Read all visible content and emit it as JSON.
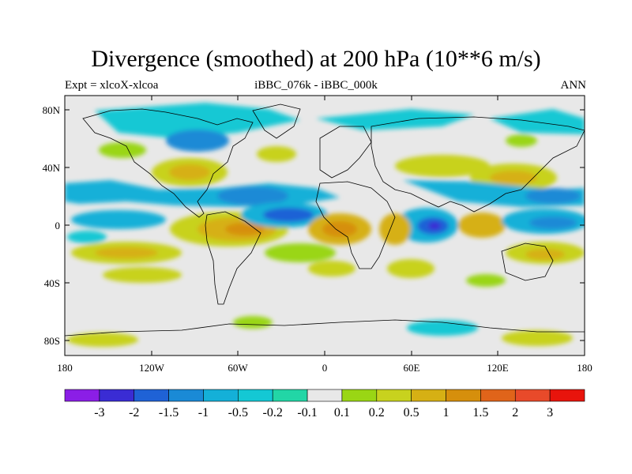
{
  "title": "Divergence (smoothed) at 200 hPa (10**6 m/s)",
  "subtitle_left": "Expt = xlcoX-xlcoa",
  "subtitle_center": "iBBC_076k - iBBC_000k",
  "subtitle_right": "ANN",
  "axes": {
    "y_ticks": [
      "80N",
      "40N",
      "0",
      "40S",
      "80S"
    ],
    "x_ticks": [
      "180",
      "120W",
      "60W",
      "0",
      "60E",
      "120E",
      "180"
    ]
  },
  "colorbar": {
    "labels": [
      "-3",
      "-2",
      "-1.5",
      "-1",
      "-0.5",
      "-0.2",
      "-0.1",
      "0.1",
      "0.2",
      "0.5",
      "1",
      "1.5",
      "2",
      "3"
    ],
    "colors": [
      "#8b1ee6",
      "#3a2cd4",
      "#1f62d6",
      "#1a8ad6",
      "#14b0d8",
      "#14c8d4",
      "#22d6a6",
      "#e8e8e8",
      "#9ad614",
      "#c8d21e",
      "#d6b014",
      "#d68f0c",
      "#e0641a",
      "#e84a2a",
      "#e8140c"
    ]
  },
  "colors": {
    "land_outline": "#000000",
    "background": "#e8e8e8"
  }
}
